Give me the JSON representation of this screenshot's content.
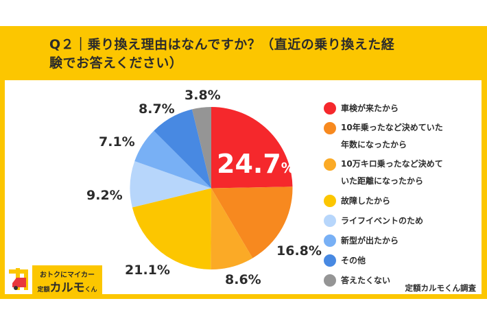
{
  "title": "Q２｜乗り換え理由はなんですか？（直近の乗り換えた経験でお答えください）",
  "title_lines": [
    "Q２｜乗り換え理由はなんですか？（直近の乗り換えた経",
    "験でお答えください）"
  ],
  "logo": {
    "tagline": "おトクにマイカー",
    "name_prefix": "定額",
    "name_main": "カルモ",
    "name_suffix": "くん"
  },
  "credit": "定額カルモくん調査",
  "chart_data": {
    "type": "pie",
    "title": "Q２｜乗り換え理由はなんですか？（直近の乗り換えた経験でお答えください）",
    "start": "12 o'clock, clockwise",
    "unit": "%",
    "legend_position": "right",
    "slices": [
      {
        "label": "車検が来たから",
        "value": 24.7,
        "display": "24.7",
        "color": "#f5282c"
      },
      {
        "label": "10年乗ったなど決めていた年数になったから",
        "label_lines": [
          "10年乗ったなど決めていた",
          "年数になったから"
        ],
        "value": 16.8,
        "display": "16.8%",
        "color": "#f7891f"
      },
      {
        "label": "10万キロ乗ったなど決めていた距離になったから",
        "label_lines": [
          "10万キロ乗ったなど決めて",
          "いた距離になったから"
        ],
        "value": 8.6,
        "display": "8.6%",
        "color": "#fbaa26"
      },
      {
        "label": "故障したから",
        "value": 21.1,
        "display": "21.1%",
        "color": "#fcc600"
      },
      {
        "label": "ライフイベントのため",
        "value": 9.2,
        "display": "9.2%",
        "color": "#b7d6fb"
      },
      {
        "label": "新型が出たから",
        "value": 7.1,
        "display": "7.1%",
        "color": "#78b0f5"
      },
      {
        "label": "その他",
        "value": 8.7,
        "display": "8.7%",
        "color": "#4889e2"
      },
      {
        "label": "答えたくない",
        "value": 3.8,
        "display": "3.8%",
        "color": "#959595"
      }
    ],
    "big_label_unit": "%"
  }
}
